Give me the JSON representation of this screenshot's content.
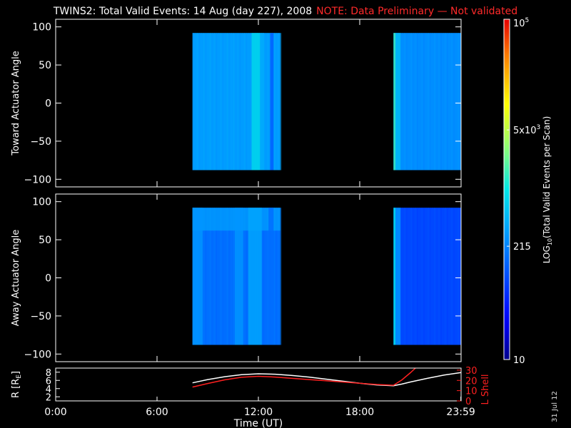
{
  "title": "TWINS2: Total Valid Events: 14 Aug (day 227), 2008",
  "note": "NOTE: Data Preliminary — Not validated",
  "datestamp": "31 Jul 12",
  "colors": {
    "background": "#000000",
    "axis": "#ffffff",
    "note": "#ff2a2a",
    "r_line": "#ffffff",
    "l_shell_line": "#ff2020"
  },
  "chart_data": [
    {
      "type": "heatmap",
      "id": "toward",
      "ylabel": "Toward Actuator Angle",
      "xlim": [
        0,
        24
      ],
      "ylim": [
        -110,
        110
      ],
      "yticks": [
        -100,
        -50,
        0,
        50,
        100
      ],
      "data_ylim": [
        -88,
        92
      ],
      "blocks": [
        {
          "x0": 8.1,
          "x1": 13.3,
          "base_log": 2.5,
          "stripes": [
            {
              "x": 11.6,
              "w": 0.5,
              "log": 2.9
            },
            {
              "x": 12.1,
              "w": 0.25,
              "log": 2.6
            },
            {
              "x": 12.7,
              "w": 0.2,
              "log": 2.1
            }
          ]
        },
        {
          "x0": 20.0,
          "x1": 24.0,
          "base_log": 2.4,
          "stripes": [
            {
              "x": 20.0,
              "w": 0.12,
              "log": 3.2
            },
            {
              "x": 20.12,
              "w": 0.3,
              "log": 2.7
            }
          ]
        }
      ]
    },
    {
      "type": "heatmap",
      "id": "away",
      "ylabel": "Away Actuator Angle",
      "xlim": [
        0,
        24
      ],
      "ylim": [
        -110,
        110
      ],
      "yticks": [
        -100,
        -50,
        0,
        50,
        100
      ],
      "data_ylim": [
        -88,
        92
      ],
      "blocks": [
        {
          "x0": 8.1,
          "x1": 13.3,
          "base_log": 2.2,
          "stripes": [
            {
              "x": 8.1,
              "w": 0.6,
              "log": 2.45
            },
            {
              "x": 10.6,
              "w": 0.5,
              "log": 2.45
            },
            {
              "x": 11.4,
              "w": 0.8,
              "log": 2.55
            },
            {
              "x": 12.6,
              "w": 0.3,
              "log": 2.2
            }
          ],
          "top_band": {
            "y0": 62,
            "y1": 92,
            "log": 2.6
          }
        },
        {
          "x0": 20.0,
          "x1": 24.0,
          "base_log": 1.95,
          "stripes": [
            {
              "x": 20.0,
              "w": 0.12,
              "log": 3.0
            },
            {
              "x": 20.12,
              "w": 0.3,
              "log": 2.45
            }
          ]
        }
      ]
    },
    {
      "type": "line",
      "id": "orbit",
      "xlabel": "Time (UT)",
      "ylabel_left": "R [R",
      "ylabel_left_sub": "E",
      "ylabel_left_end": "]",
      "ylabel_right": "L Shell",
      "xlim": [
        0,
        24
      ],
      "ylim_left": [
        1,
        9
      ],
      "ylim_right": [
        0,
        32
      ],
      "yticks_left": [
        2,
        4,
        6,
        8
      ],
      "yticks_right": [
        0,
        10,
        20,
        30
      ],
      "xticks": [
        {
          "v": 0,
          "label": "0:00"
        },
        {
          "v": 6,
          "label": "6:00"
        },
        {
          "v": 12,
          "label": "12:00"
        },
        {
          "v": 18,
          "label": "18:00"
        },
        {
          "v": 23.983,
          "label": "23:59"
        }
      ],
      "series": [
        {
          "axis": "left",
          "color": "#ffffff",
          "x": [
            8.1,
            9.0,
            10.0,
            11.0,
            12.0,
            13.0,
            14.0,
            15.0,
            16.0,
            17.0,
            18.0,
            19.0,
            20.0,
            20.5,
            21.0,
            22.0,
            23.0,
            24.0
          ],
          "y": [
            5.4,
            6.2,
            6.9,
            7.4,
            7.6,
            7.5,
            7.2,
            6.8,
            6.3,
            5.8,
            5.3,
            4.9,
            4.7,
            5.1,
            5.6,
            6.5,
            7.3,
            7.9
          ]
        },
        {
          "axis": "right",
          "color": "#ff2020",
          "x": [
            8.1,
            9.0,
            10.0,
            11.0,
            12.0,
            13.0,
            14.0,
            15.0,
            16.0,
            17.0,
            18.0,
            19.0,
            20.0,
            20.5,
            21.0,
            21.3
          ],
          "y": [
            13.5,
            17.0,
            20.5,
            23.0,
            24.0,
            23.2,
            22.0,
            20.8,
            19.6,
            18.4,
            17.2,
            16.0,
            15.2,
            20.5,
            27.5,
            32.0
          ]
        }
      ]
    }
  ],
  "colorbar": {
    "label_prefix": "LOG",
    "label_sub": "10",
    "label_suffix": "(Total Valid Events per Scan)",
    "log_min": 1,
    "log_max": 5,
    "ticks": [
      {
        "log": 1.0,
        "base": "10",
        "exp": ""
      },
      {
        "log": 2.332,
        "base": "215",
        "exp": ""
      },
      {
        "log": 3.699,
        "base": "5x10",
        "exp": "3"
      },
      {
        "log": 5.0,
        "base": "10",
        "exp": "5"
      }
    ]
  }
}
